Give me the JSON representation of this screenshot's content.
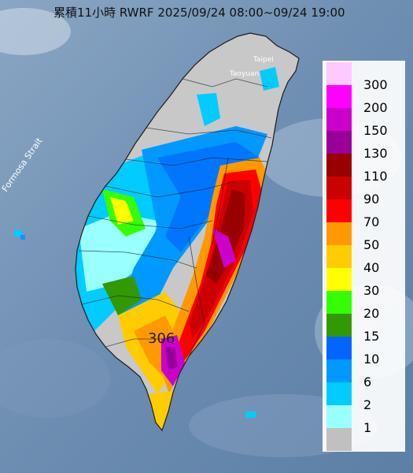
{
  "title": "累積11小時 RWRF 2025/09/24 08:00~09/24 19:00",
  "map_labels": {
    "strait": "Formosa Strait",
    "taipei": "Taipei",
    "taoyuan": "Taoyuan"
  },
  "max_marker": "306",
  "legend": {
    "unit": "",
    "entries": [
      {
        "label": "300",
        "color": "#ffc8ff"
      },
      {
        "label": "200",
        "color": "#ff00ff"
      },
      {
        "label": "150",
        "color": "#cc00cc"
      },
      {
        "label": "130",
        "color": "#990099"
      },
      {
        "label": "110",
        "color": "#990000"
      },
      {
        "label": "90",
        "color": "#cc0000"
      },
      {
        "label": "70",
        "color": "#ff0000"
      },
      {
        "label": "50",
        "color": "#ff9900"
      },
      {
        "label": "40",
        "color": "#ffcc00"
      },
      {
        "label": "30",
        "color": "#ffff00"
      },
      {
        "label": "20",
        "color": "#33ff00"
      },
      {
        "label": "15",
        "color": "#339900"
      },
      {
        "label": "10",
        "color": "#0066ff"
      },
      {
        "label": "6",
        "color": "#0099ff"
      },
      {
        "label": "2",
        "color": "#00ccff"
      },
      {
        "label": "1",
        "color": "#99ffff"
      },
      {
        "label": "",
        "color": "#c0c0c0"
      }
    ]
  },
  "colors": {
    "sea": "#6f8fb2",
    "sea_dark": "#5a7ca3",
    "no_rain": "#c8c8c8"
  }
}
